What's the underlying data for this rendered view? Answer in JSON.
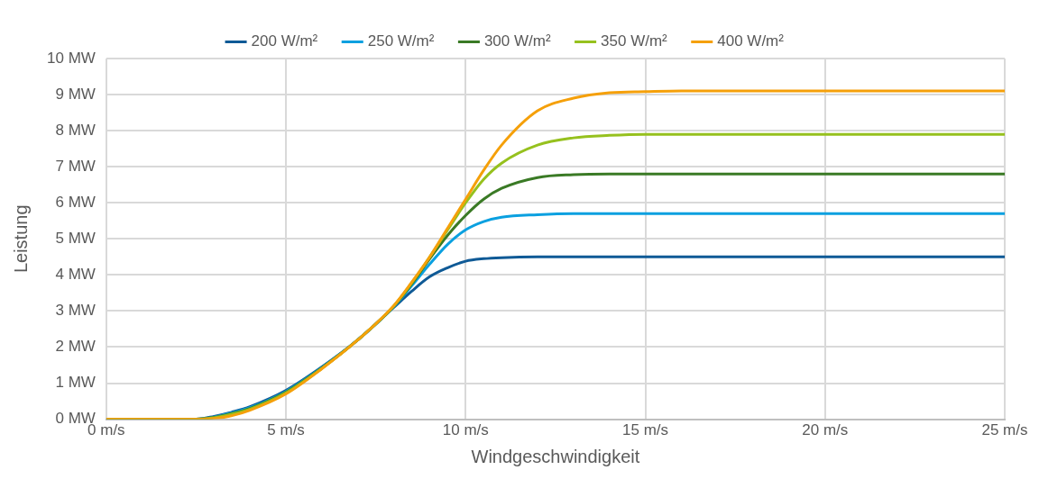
{
  "chart_data": {
    "type": "line",
    "xlabel": "Windgeschwindigkeit",
    "ylabel": "Leistung",
    "x": [
      0,
      2.5,
      3,
      3.5,
      4,
      5,
      6,
      7,
      8,
      8.5,
      9,
      9.5,
      10,
      10.5,
      11,
      12,
      13,
      14,
      15,
      16,
      25
    ],
    "series": [
      {
        "name": "200 W/m²",
        "color": "#0f5a96",
        "values": [
          0,
          0,
          0.08,
          0.2,
          0.35,
          0.8,
          1.45,
          2.2,
          3.1,
          3.55,
          3.95,
          4.2,
          4.38,
          4.45,
          4.48,
          4.5,
          4.5,
          4.5,
          4.5,
          4.5,
          4.5
        ]
      },
      {
        "name": "250 W/m²",
        "color": "#0aa0e0",
        "values": [
          0,
          0,
          0.06,
          0.18,
          0.32,
          0.77,
          1.43,
          2.2,
          3.12,
          3.7,
          4.3,
          4.85,
          5.25,
          5.48,
          5.6,
          5.67,
          5.7,
          5.7,
          5.7,
          5.7,
          5.7
        ]
      },
      {
        "name": "300 W/m²",
        "color": "#3a7a25",
        "values": [
          0,
          0,
          0.05,
          0.16,
          0.3,
          0.75,
          1.42,
          2.2,
          3.13,
          3.75,
          4.45,
          5.1,
          5.65,
          6.1,
          6.4,
          6.7,
          6.78,
          6.8,
          6.8,
          6.8,
          6.8
        ]
      },
      {
        "name": "350 W/m²",
        "color": "#96c11e",
        "values": [
          0,
          0,
          0.04,
          0.14,
          0.28,
          0.73,
          1.41,
          2.2,
          3.14,
          3.78,
          4.5,
          5.25,
          6.0,
          6.65,
          7.1,
          7.6,
          7.8,
          7.87,
          7.9,
          7.9,
          7.9
        ]
      },
      {
        "name": "400 W/m²",
        "color": "#f5a00a",
        "values": [
          0,
          0,
          0.02,
          0.1,
          0.25,
          0.7,
          1.4,
          2.2,
          3.15,
          3.8,
          4.5,
          5.3,
          6.1,
          6.9,
          7.6,
          8.55,
          8.9,
          9.05,
          9.08,
          9.1,
          9.1
        ]
      }
    ],
    "xlim": [
      0,
      25
    ],
    "xticks": [
      {
        "value": 0,
        "label": "0 m/s"
      },
      {
        "value": 5,
        "label": "5 m/s"
      },
      {
        "value": 10,
        "label": "10 m/s"
      },
      {
        "value": 15,
        "label": "15 m/s"
      },
      {
        "value": 20,
        "label": "20 m/s"
      },
      {
        "value": 25,
        "label": "25 m/s"
      }
    ],
    "ylim": [
      0,
      10
    ],
    "yticks": [
      {
        "value": 0,
        "label": "0 MW"
      },
      {
        "value": 1,
        "label": "1 MW"
      },
      {
        "value": 2,
        "label": "2 MW"
      },
      {
        "value": 3,
        "label": "3 MW"
      },
      {
        "value": 4,
        "label": "4 MW"
      },
      {
        "value": 5,
        "label": "5 MW"
      },
      {
        "value": 6,
        "label": "6 MW"
      },
      {
        "value": 7,
        "label": "7 MW"
      },
      {
        "value": 8,
        "label": "8 MW"
      },
      {
        "value": 9,
        "label": "9 MW"
      },
      {
        "value": 10,
        "label": "10 MW"
      }
    ],
    "grid": true,
    "legend": "top",
    "marker": "none",
    "line_style": "solid"
  }
}
